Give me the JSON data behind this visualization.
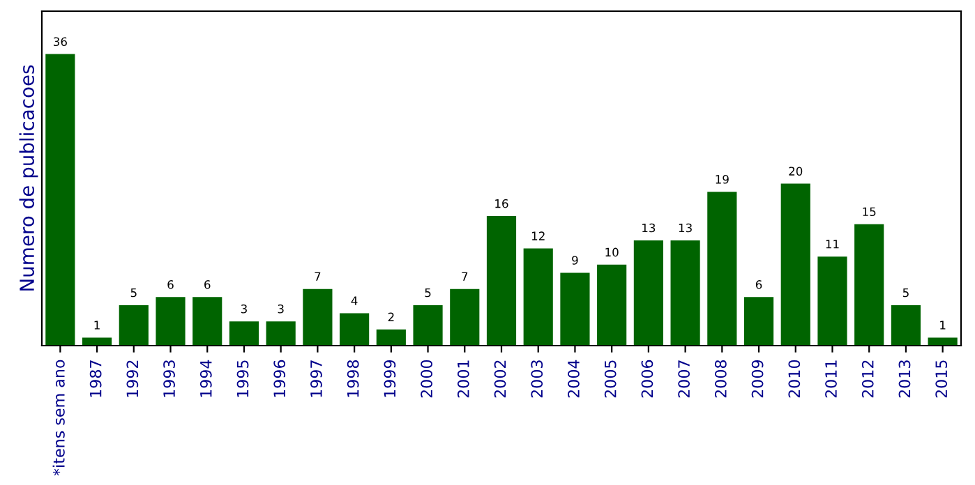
{
  "chart_data": {
    "type": "bar",
    "ylabel": "Numero de publicacoes",
    "categories": [
      "*itens sem ano",
      "1987",
      "1992",
      "1993",
      "1994",
      "1995",
      "1996",
      "1997",
      "1998",
      "1999",
      "2000",
      "2001",
      "2002",
      "2003",
      "2004",
      "2005",
      "2006",
      "2007",
      "2008",
      "2009",
      "2010",
      "2011",
      "2012",
      "2013",
      "2015"
    ],
    "values": [
      36,
      1,
      5,
      6,
      6,
      3,
      3,
      7,
      4,
      2,
      5,
      7,
      16,
      12,
      9,
      10,
      13,
      13,
      19,
      6,
      20,
      11,
      15,
      5,
      1
    ],
    "color": "#006400",
    "data_labels": true,
    "ylim": [
      0,
      41.3
    ],
    "tick_labels": "x",
    "grid": false,
    "legend": false
  }
}
